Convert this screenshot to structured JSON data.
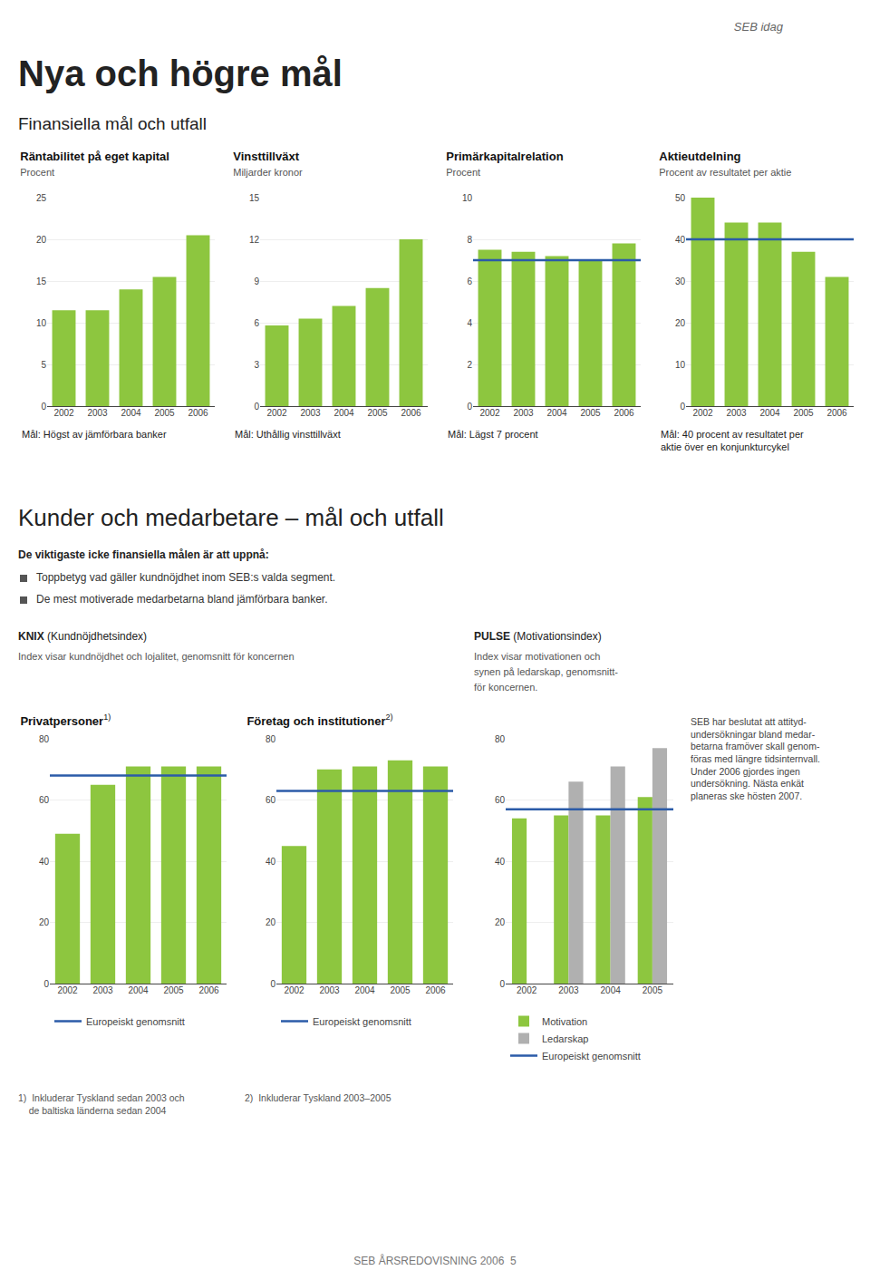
{
  "title": "Nya och högre mål",
  "annotations": [
    "SEB idag",
    "Finansiella mål och utfall",
    "Kunder och medarbetare – mål och utfall",
    "De viktigaste icke finansiella målen är att uppnå:",
    "Toppbetyg vad gäller kundnöjdhet inom SEB:s valda segment.",
    "De mest motiverade medarbetarna bland jämförbara banker.",
    "KNIX",
    " (Kundnöjdhetsindex)",
    "Index visar kundnöjdhet och lojalitet, genomsnitt för koncernen",
    "PULSE",
    " (Motivationsindex)",
    "Index visar motivationen och",
    "synen på ledarskap, genomsnitt-",
    "för koncernen.",
    "1)  Inkluderar Tyskland sedan 2003 och\n    de baltiska länderna sedan 2004",
    "2)  Inkluderar Tyskland 2003–2005",
    "SEB har beslutat att attityd-\nundersökningar bland medar-\nbetarna framöver skall genom-\nföras med längre tidsinternvall.\nUnder 2006 gjordes ingen\nundersökning. Nästa enkät\nplaneras ske hösten 2007.",
    "SEB ÅRSREDOVISNING 2006  5"
  ],
  "chart_data": [
    {
      "type": "bar",
      "title": "Räntabilitet på eget kapital",
      "subtitle": "Procent",
      "categories": [
        "2002",
        "2003",
        "2004",
        "2005",
        "2006"
      ],
      "values": [
        11.5,
        11.5,
        14.0,
        15.5,
        20.5
      ],
      "color": "#8DC63F",
      "ylim": [
        0,
        25
      ],
      "yticks": [
        0,
        5,
        10,
        15,
        20,
        25
      ],
      "grid": true,
      "annotations": [
        "Mål: Högst av jämförbara banker"
      ]
    },
    {
      "type": "bar",
      "title": "Vinsttillväxt",
      "subtitle": "Miljarder kronor",
      "categories": [
        "2002",
        "2003",
        "2004",
        "2005",
        "2006"
      ],
      "values": [
        5.8,
        6.3,
        7.2,
        8.5,
        12.0
      ],
      "color": "#8DC63F",
      "ylim": [
        0,
        15
      ],
      "yticks": [
        0,
        3,
        6,
        9,
        12,
        15
      ],
      "grid": true,
      "annotations": [
        "Mål: Uthållig vinsttillväxt"
      ]
    },
    {
      "type": "bar",
      "title": "Primärkapitalrelation",
      "subtitle": "Procent",
      "categories": [
        "2002",
        "2003",
        "2004",
        "2005",
        "2006"
      ],
      "values": [
        7.5,
        7.4,
        7.2,
        7.0,
        7.8
      ],
      "color": "#8DC63F",
      "ylim": [
        0,
        10
      ],
      "yticks": [
        0,
        2,
        4,
        6,
        8,
        10
      ],
      "grid": true,
      "reference_line": {
        "value": 7.0,
        "color": "#2B5BA8"
      },
      "annotations": [
        "Mål: Lägst 7 procent"
      ]
    },
    {
      "type": "bar",
      "title": "Aktieutdelning",
      "subtitle": "Procent av resultatet per aktie",
      "categories": [
        "2002",
        "2003",
        "2004",
        "2005",
        "2006"
      ],
      "values": [
        50.0,
        44.0,
        44.0,
        37.0,
        31.0
      ],
      "color": "#8DC63F",
      "ylim": [
        0,
        50
      ],
      "yticks": [
        0,
        10,
        20,
        30,
        40,
        50
      ],
      "grid": true,
      "reference_line": {
        "value": 40.0,
        "color": "#2B5BA8"
      },
      "annotations": [
        "Mål: 40 procent av resultatet per\naktie över en konjunkturcykel"
      ]
    },
    {
      "type": "bar",
      "title": "Privatpersoner",
      "title_note": "1)",
      "categories": [
        "2002",
        "2003",
        "2004",
        "2005",
        "2006"
      ],
      "values": [
        49,
        65,
        71,
        71,
        71
      ],
      "color": "#8DC63F",
      "ylim": [
        0,
        80
      ],
      "yticks": [
        0,
        20,
        40,
        60,
        80
      ],
      "grid": true,
      "reference_line": {
        "value": 68,
        "label": "Europeiskt genomsnitt",
        "color": "#2B5BA8"
      },
      "legend": "bottom"
    },
    {
      "type": "bar",
      "title": "Företag och institutioner",
      "title_note": "2)",
      "categories": [
        "2002",
        "2003",
        "2004",
        "2005",
        "2006"
      ],
      "values": [
        45,
        70,
        71,
        73,
        71
      ],
      "color": "#8DC63F",
      "ylim": [
        0,
        80
      ],
      "yticks": [
        0,
        20,
        40,
        60,
        80
      ],
      "grid": true,
      "reference_line": {
        "value": 63,
        "label": "Europeiskt genomsnitt",
        "color": "#2B5BA8"
      },
      "legend": "bottom"
    },
    {
      "type": "bar",
      "categories": [
        "2002",
        "2003",
        "2004",
        "2005"
      ],
      "series": [
        {
          "name": "Motivation",
          "color": "#8DC63F",
          "values": [
            54,
            55,
            55,
            61
          ]
        },
        {
          "name": "Ledarskap",
          "color": "#B0B0B0",
          "values": [
            0,
            66,
            71,
            77
          ]
        }
      ],
      "ylim": [
        0,
        80
      ],
      "yticks": [
        0,
        20,
        40,
        60,
        80
      ],
      "grid": true,
      "reference_line": {
        "value": 57,
        "label": "Europeiskt genomsnitt",
        "color": "#2B5BA8"
      },
      "legend": "bottom"
    }
  ]
}
